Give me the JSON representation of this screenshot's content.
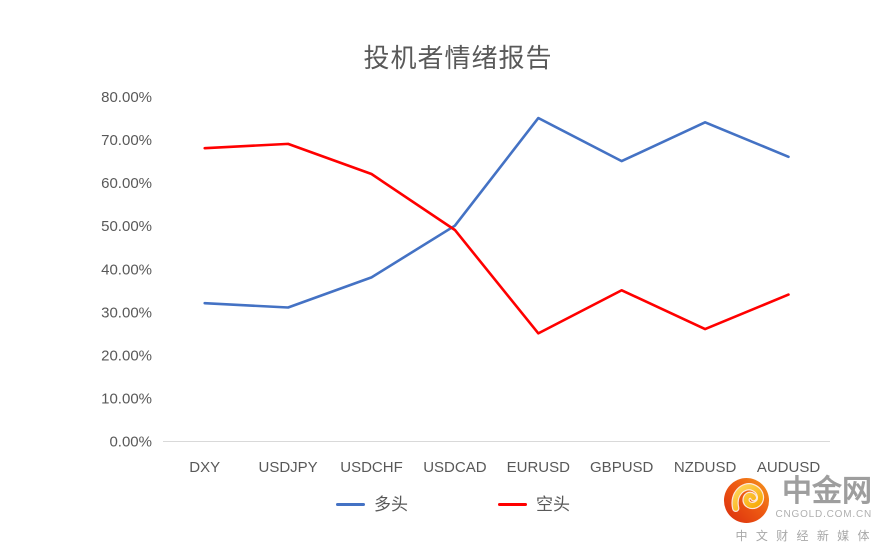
{
  "chart": {
    "title": "投机者情绪报告"
  },
  "chart_data": {
    "type": "line",
    "title": "投机者情绪报告",
    "categories": [
      "DXY",
      "USDJPY",
      "USDCHF",
      "USDCAD",
      "EURUSD",
      "GBPUSD",
      "NZDUSD",
      "AUDUSD"
    ],
    "series": [
      {
        "name": "多头",
        "color": "#4472C4",
        "values": [
          32,
          31,
          38,
          50,
          75,
          65,
          74,
          66
        ]
      },
      {
        "name": "空头",
        "color": "#FF0000",
        "values": [
          68,
          69,
          62,
          49,
          25,
          35,
          26,
          34
        ]
      }
    ],
    "unit": "%",
    "ylim": [
      0,
      80
    ],
    "ytick_step": 10,
    "ytick_labels": [
      "0.00%",
      "10.00%",
      "20.00%",
      "30.00%",
      "40.00%",
      "50.00%",
      "60.00%",
      "70.00%",
      "80.00%"
    ],
    "grid": false,
    "legend_position": "bottom",
    "axis_color": "#D9D9D9",
    "label_color": "#595959"
  },
  "watermark": {
    "brand": "中金网",
    "domain": "CNGOLD.COM.CN",
    "tagline": "中 文 财 经 新 媒 体"
  }
}
